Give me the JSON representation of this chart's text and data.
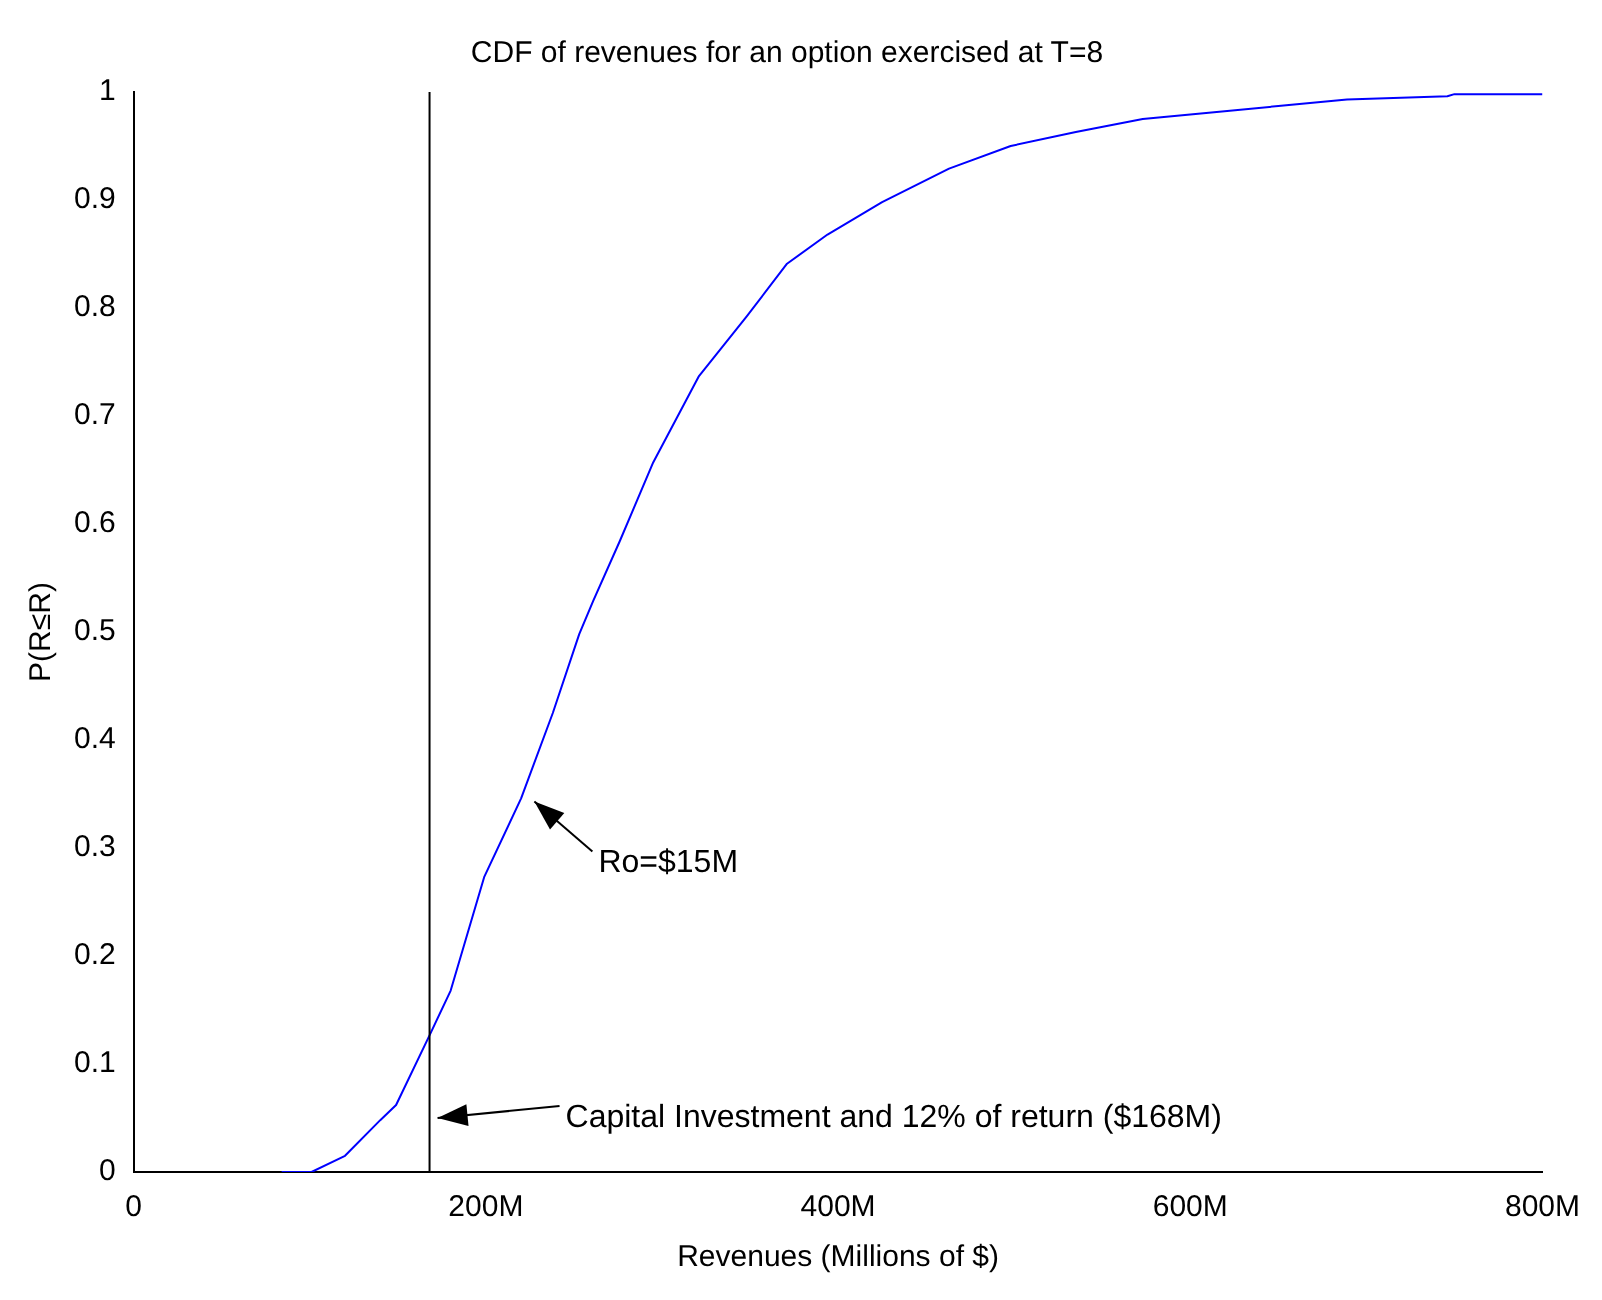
{
  "chart_data": {
    "type": "line",
    "title": "CDF of revenues for an option exercised at T=8",
    "xlabel": "Revenues (Millions of $)",
    "ylabel": "P(R≤R)",
    "series": [
      {
        "color": "#0000ff",
        "x": [
          84,
          101,
          120,
          140,
          149,
          169,
          180,
          199,
          220,
          238,
          253,
          261,
          276,
          295,
          321,
          348,
          371,
          394,
          425,
          463,
          498,
          535,
          573,
          612,
          650,
          689,
          746,
          750,
          800
        ],
        "values": [
          0,
          0,
          0.015,
          0.048,
          0.062,
          0.13,
          0.168,
          0.273,
          0.346,
          0.425,
          0.498,
          0.529,
          0.584,
          0.657,
          0.737,
          0.792,
          0.841,
          0.868,
          0.898,
          0.929,
          0.95,
          0.963,
          0.975,
          0.981,
          0.987,
          0.993,
          0.996,
          0.998,
          0.998
        ]
      }
    ],
    "xlim": [
      0,
      800
    ],
    "xticks": [
      0,
      {
        "value": 200,
        "label": "200M"
      },
      {
        "value": 400,
        "label": "400M"
      },
      {
        "value": 600,
        "label": "600M"
      },
      {
        "value": 800,
        "label": "800M"
      }
    ],
    "ylim": [
      0,
      1
    ],
    "yticks": [
      0,
      0.1,
      0.2,
      0.3,
      0.4,
      0.5,
      0.6,
      0.7,
      0.8,
      0.9,
      1
    ],
    "ref_lines": [
      {
        "axis": "x",
        "value": 168,
        "color": "#000000"
      }
    ],
    "annotations": [
      {
        "text": "Ro=$15M",
        "x": 223,
        "y": 0.343
      },
      {
        "text": "Capital Investment and 12% of return ($168M)",
        "x": 168,
        "y": 0.05
      }
    ],
    "grid": false,
    "legend": false,
    "marker": "none",
    "line_style": "solid"
  }
}
